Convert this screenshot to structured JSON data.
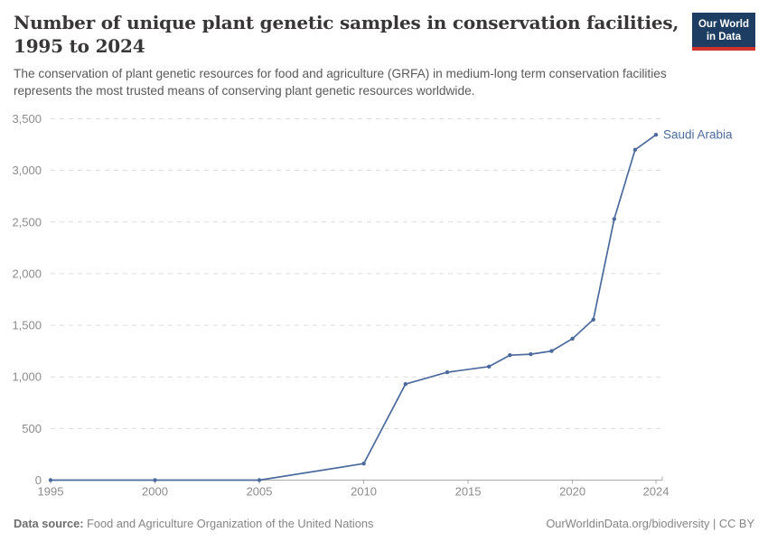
{
  "header": {
    "title_line1": "Number of unique plant genetic samples in conservation facilities,",
    "title_line2": "1995 to 2024",
    "subtitle_line1": "The conservation of plant genetic resources for food and agriculture (GRFA) in medium-long term conservation facilities",
    "subtitle_line2": "represents the most trusted means of conserving plant genetic resources worldwide.",
    "logo": {
      "line1": "Our World",
      "line2": "in Data"
    }
  },
  "chart_data": {
    "type": "line",
    "title": "Number of unique plant genetic samples in conservation facilities, 1995 to 2024",
    "xlabel": "",
    "ylabel": "",
    "xlim": [
      1995,
      2024
    ],
    "ylim": [
      0,
      3500
    ],
    "grid": "horizontal-dashed",
    "legend_position": "end-of-line-label",
    "series": [
      {
        "name": "Saudi Arabia",
        "color": "#4c6a9c",
        "points": [
          {
            "x": 1995,
            "y": 0
          },
          {
            "x": 2000,
            "y": 0
          },
          {
            "x": 2005,
            "y": 0
          },
          {
            "x": 2010,
            "y": 160
          },
          {
            "x": 2012,
            "y": 930
          },
          {
            "x": 2014,
            "y": 1045
          },
          {
            "x": 2016,
            "y": 1100
          },
          {
            "x": 2017,
            "y": 1210
          },
          {
            "x": 2018,
            "y": 1220
          },
          {
            "x": 2019,
            "y": 1250
          },
          {
            "x": 2020,
            "y": 1370
          },
          {
            "x": 2021,
            "y": 1555
          },
          {
            "x": 2022,
            "y": 2530
          },
          {
            "x": 2023,
            "y": 3200
          },
          {
            "x": 2024,
            "y": 3345
          }
        ]
      }
    ],
    "yticks": [
      {
        "value": 0,
        "label": "0"
      },
      {
        "value": 500,
        "label": "500"
      },
      {
        "value": 1000,
        "label": "1,000"
      },
      {
        "value": 1500,
        "label": "1,500"
      },
      {
        "value": 2000,
        "label": "2,000"
      },
      {
        "value": 2500,
        "label": "2,500"
      },
      {
        "value": 3000,
        "label": "3,000"
      },
      {
        "value": 3500,
        "label": "3,500"
      }
    ],
    "xticks": [
      {
        "value": 1995,
        "label": "1995"
      },
      {
        "value": 2000,
        "label": "2000"
      },
      {
        "value": 2005,
        "label": "2005"
      },
      {
        "value": 2010,
        "label": "2010"
      },
      {
        "value": 2015,
        "label": "2015"
      },
      {
        "value": 2020,
        "label": "2020"
      },
      {
        "value": 2024,
        "label": "2024"
      }
    ]
  },
  "colors": {
    "line": "#4c6a9c",
    "gridline": "#dcdcdc",
    "axis": "#a9a9a9",
    "tick_label": "#8c8c8c",
    "title": "#383636",
    "subtitle": "#595959",
    "logo_bg": "#1d3d63",
    "logo_bar": "#d1322c"
  },
  "footer": {
    "source_label": "Data source:",
    "source_text": "Food and Agriculture Organization of the United Nations",
    "link_text": "OurWorldinData.org/biodiversity | CC BY"
  }
}
